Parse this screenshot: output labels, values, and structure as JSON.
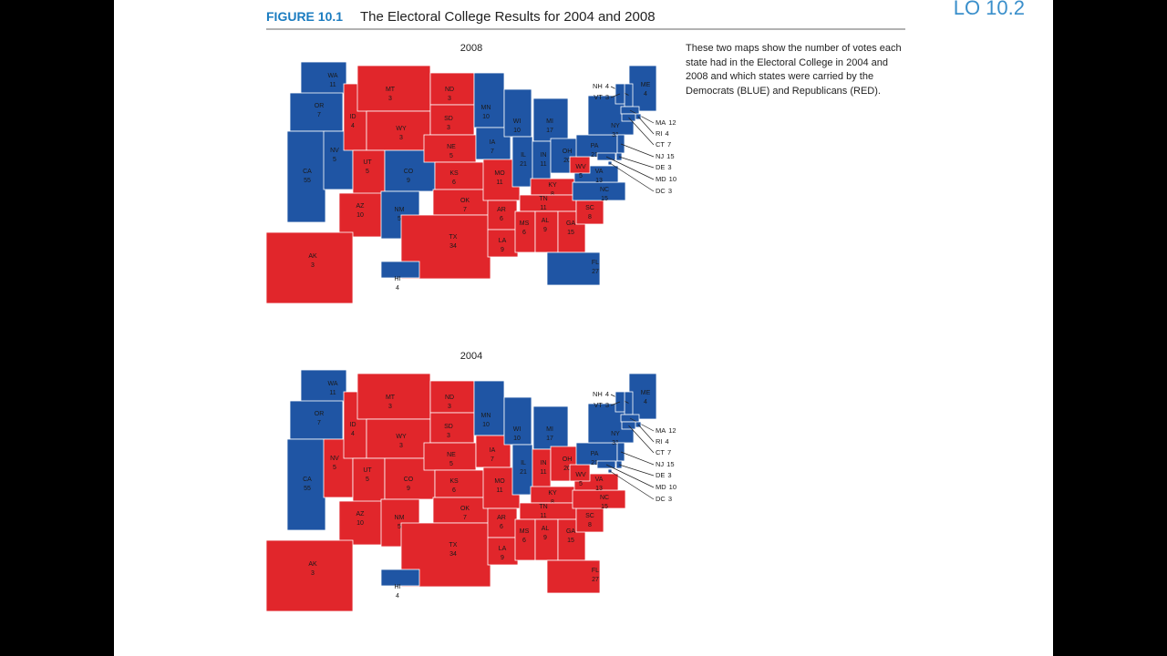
{
  "corner": "LO 10.2",
  "figure": {
    "label": "FIGURE 10.1",
    "title": "The Electoral College Results for 2004 and 2008"
  },
  "caption": "These two maps show the number of votes each state had in the Electoral College in 2004 and 2008 and which states were carried by the Democrats (BLUE) and Republicans (RED).",
  "palette": {
    "blue": "#1f55a4",
    "red": "#e1262b"
  },
  "maps": [
    {
      "year": "2008",
      "states": [
        {
          "abbr": "WA",
          "votes": 11,
          "color": "blue"
        },
        {
          "abbr": "OR",
          "votes": 7,
          "color": "blue"
        },
        {
          "abbr": "CA",
          "votes": 55,
          "color": "blue"
        },
        {
          "abbr": "NV",
          "votes": 5,
          "color": "blue"
        },
        {
          "abbr": "ID",
          "votes": 4,
          "color": "red"
        },
        {
          "abbr": "MT",
          "votes": 3,
          "color": "red"
        },
        {
          "abbr": "WY",
          "votes": 3,
          "color": "red"
        },
        {
          "abbr": "UT",
          "votes": 5,
          "color": "red"
        },
        {
          "abbr": "AZ",
          "votes": 10,
          "color": "red"
        },
        {
          "abbr": "CO",
          "votes": 9,
          "color": "blue"
        },
        {
          "abbr": "NM",
          "votes": 5,
          "color": "blue"
        },
        {
          "abbr": "ND",
          "votes": 3,
          "color": "red"
        },
        {
          "abbr": "SD",
          "votes": 3,
          "color": "red"
        },
        {
          "abbr": "NE",
          "votes": 5,
          "color": "red"
        },
        {
          "abbr": "KS",
          "votes": 6,
          "color": "red"
        },
        {
          "abbr": "OK",
          "votes": 7,
          "color": "red"
        },
        {
          "abbr": "TX",
          "votes": 34,
          "color": "red"
        },
        {
          "abbr": "MN",
          "votes": 10,
          "color": "blue"
        },
        {
          "abbr": "IA",
          "votes": 7,
          "color": "blue"
        },
        {
          "abbr": "MO",
          "votes": 11,
          "color": "red"
        },
        {
          "abbr": "AR",
          "votes": 6,
          "color": "red"
        },
        {
          "abbr": "LA",
          "votes": 9,
          "color": "red"
        },
        {
          "abbr": "WI",
          "votes": 10,
          "color": "blue"
        },
        {
          "abbr": "IL",
          "votes": 21,
          "color": "blue"
        },
        {
          "abbr": "MI",
          "votes": 17,
          "color": "blue"
        },
        {
          "abbr": "IN",
          "votes": 11,
          "color": "blue"
        },
        {
          "abbr": "OH",
          "votes": 20,
          "color": "blue"
        },
        {
          "abbr": "KY",
          "votes": 8,
          "color": "red"
        },
        {
          "abbr": "TN",
          "votes": 11,
          "color": "red"
        },
        {
          "abbr": "MS",
          "votes": 6,
          "color": "red"
        },
        {
          "abbr": "AL",
          "votes": 9,
          "color": "red"
        },
        {
          "abbr": "GA",
          "votes": 15,
          "color": "red"
        },
        {
          "abbr": "FL",
          "votes": 27,
          "color": "blue"
        },
        {
          "abbr": "SC",
          "votes": 8,
          "color": "red"
        },
        {
          "abbr": "NC",
          "votes": 15,
          "color": "blue"
        },
        {
          "abbr": "VA",
          "votes": 13,
          "color": "blue"
        },
        {
          "abbr": "WV",
          "votes": 5,
          "color": "red"
        },
        {
          "abbr": "PA",
          "votes": 21,
          "color": "blue"
        },
        {
          "abbr": "NY",
          "votes": 31,
          "color": "blue"
        },
        {
          "abbr": "ME",
          "votes": 4,
          "color": "blue"
        },
        {
          "abbr": "AK",
          "votes": 3,
          "color": "red"
        },
        {
          "abbr": "HI",
          "votes": 4,
          "color": "blue"
        },
        {
          "abbr": "NH",
          "votes": 4,
          "color": "blue"
        },
        {
          "abbr": "VT",
          "votes": 3,
          "color": "blue"
        },
        {
          "abbr": "MA",
          "votes": 12,
          "color": "blue"
        },
        {
          "abbr": "RI",
          "votes": 4,
          "color": "blue"
        },
        {
          "abbr": "CT",
          "votes": 7,
          "color": "blue"
        },
        {
          "abbr": "NJ",
          "votes": 15,
          "color": "blue"
        },
        {
          "abbr": "DE",
          "votes": 3,
          "color": "blue"
        },
        {
          "abbr": "MD",
          "votes": 10,
          "color": "blue"
        },
        {
          "abbr": "DC",
          "votes": 3,
          "color": "blue"
        }
      ]
    },
    {
      "year": "2004",
      "states": [
        {
          "abbr": "WA",
          "votes": 11,
          "color": "blue"
        },
        {
          "abbr": "OR",
          "votes": 7,
          "color": "blue"
        },
        {
          "abbr": "CA",
          "votes": 55,
          "color": "blue"
        },
        {
          "abbr": "NV",
          "votes": 5,
          "color": "red"
        },
        {
          "abbr": "ID",
          "votes": 4,
          "color": "red"
        },
        {
          "abbr": "MT",
          "votes": 3,
          "color": "red"
        },
        {
          "abbr": "WY",
          "votes": 3,
          "color": "red"
        },
        {
          "abbr": "UT",
          "votes": 5,
          "color": "red"
        },
        {
          "abbr": "AZ",
          "votes": 10,
          "color": "red"
        },
        {
          "abbr": "CO",
          "votes": 9,
          "color": "red"
        },
        {
          "abbr": "NM",
          "votes": 5,
          "color": "red"
        },
        {
          "abbr": "ND",
          "votes": 3,
          "color": "red"
        },
        {
          "abbr": "SD",
          "votes": 3,
          "color": "red"
        },
        {
          "abbr": "NE",
          "votes": 5,
          "color": "red"
        },
        {
          "abbr": "KS",
          "votes": 6,
          "color": "red"
        },
        {
          "abbr": "OK",
          "votes": 7,
          "color": "red"
        },
        {
          "abbr": "TX",
          "votes": 34,
          "color": "red"
        },
        {
          "abbr": "MN",
          "votes": 10,
          "color": "blue"
        },
        {
          "abbr": "IA",
          "votes": 7,
          "color": "red"
        },
        {
          "abbr": "MO",
          "votes": 11,
          "color": "red"
        },
        {
          "abbr": "AR",
          "votes": 6,
          "color": "red"
        },
        {
          "abbr": "LA",
          "votes": 9,
          "color": "red"
        },
        {
          "abbr": "WI",
          "votes": 10,
          "color": "blue"
        },
        {
          "abbr": "IL",
          "votes": 21,
          "color": "blue"
        },
        {
          "abbr": "MI",
          "votes": 17,
          "color": "blue"
        },
        {
          "abbr": "IN",
          "votes": 11,
          "color": "red"
        },
        {
          "abbr": "OH",
          "votes": 20,
          "color": "red"
        },
        {
          "abbr": "KY",
          "votes": 8,
          "color": "red"
        },
        {
          "abbr": "TN",
          "votes": 11,
          "color": "red"
        },
        {
          "abbr": "MS",
          "votes": 6,
          "color": "red"
        },
        {
          "abbr": "AL",
          "votes": 9,
          "color": "red"
        },
        {
          "abbr": "GA",
          "votes": 15,
          "color": "red"
        },
        {
          "abbr": "FL",
          "votes": 27,
          "color": "red"
        },
        {
          "abbr": "SC",
          "votes": 8,
          "color": "red"
        },
        {
          "abbr": "NC",
          "votes": 15,
          "color": "red"
        },
        {
          "abbr": "VA",
          "votes": 13,
          "color": "red"
        },
        {
          "abbr": "WV",
          "votes": 5,
          "color": "red"
        },
        {
          "abbr": "PA",
          "votes": 21,
          "color": "blue"
        },
        {
          "abbr": "NY",
          "votes": 31,
          "color": "blue"
        },
        {
          "abbr": "ME",
          "votes": 4,
          "color": "blue"
        },
        {
          "abbr": "AK",
          "votes": 3,
          "color": "red"
        },
        {
          "abbr": "HI",
          "votes": 4,
          "color": "blue"
        },
        {
          "abbr": "NH",
          "votes": 4,
          "color": "blue"
        },
        {
          "abbr": "VT",
          "votes": 3,
          "color": "blue"
        },
        {
          "abbr": "MA",
          "votes": 12,
          "color": "blue"
        },
        {
          "abbr": "RI",
          "votes": 4,
          "color": "blue"
        },
        {
          "abbr": "CT",
          "votes": 7,
          "color": "blue"
        },
        {
          "abbr": "NJ",
          "votes": 15,
          "color": "blue"
        },
        {
          "abbr": "DE",
          "votes": 3,
          "color": "blue"
        },
        {
          "abbr": "MD",
          "votes": 10,
          "color": "blue"
        },
        {
          "abbr": "DC",
          "votes": 3,
          "color": "blue"
        }
      ]
    }
  ]
}
